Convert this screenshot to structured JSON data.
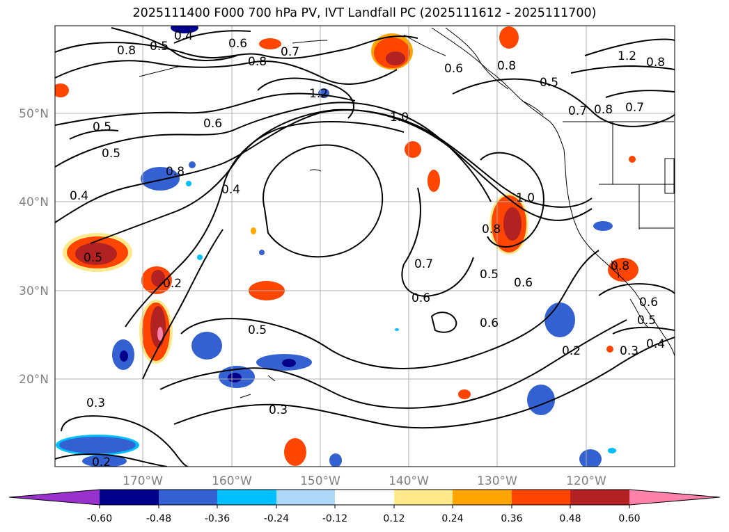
{
  "title": "2025111400 F000 700 hPa PV, IVT Landfall PC (2025111612 - 2025111700)",
  "map": {
    "lat_labels": [
      "50°N",
      "40°N",
      "30°N",
      "20°N"
    ],
    "lon_labels": [
      "170°W",
      "160°W",
      "150°W",
      "140°W",
      "130°W",
      "120°W"
    ],
    "contour_labels": [
      "0.4",
      "0.5",
      "0.6",
      "0.7",
      "0.8",
      "0.8",
      "0.5",
      "0.5",
      "0.6",
      "0.4",
      "0.8",
      "0.4",
      "1.0",
      "0.5",
      "0.2",
      "0.5",
      "0.3",
      "0.3",
      "0.2",
      "0.8",
      "1.0",
      "0.5",
      "0.7",
      "0.6",
      "0.6",
      "0.6",
      "0.2",
      "0.3",
      "0.4",
      "0.6",
      "0.5",
      "0.8",
      "0.7",
      "0.8",
      "0.7",
      "1.2",
      "0.8",
      "0.6",
      "1.2",
      "0.8",
      "0.5"
    ]
  },
  "colorbar": {
    "ticks": [
      "-0.60",
      "-0.48",
      "-0.36",
      "-0.24",
      "-0.12",
      "0.12",
      "0.24",
      "0.36",
      "0.48",
      "0.60"
    ],
    "colors": [
      "#9932cc",
      "#00008b",
      "#3461d1",
      "#00bfff",
      "#add8f8",
      "#ffffff",
      "#ffe98a",
      "#ffa500",
      "#ff4500",
      "#b22222",
      "#ff82ab",
      "#ff82ab"
    ]
  }
}
